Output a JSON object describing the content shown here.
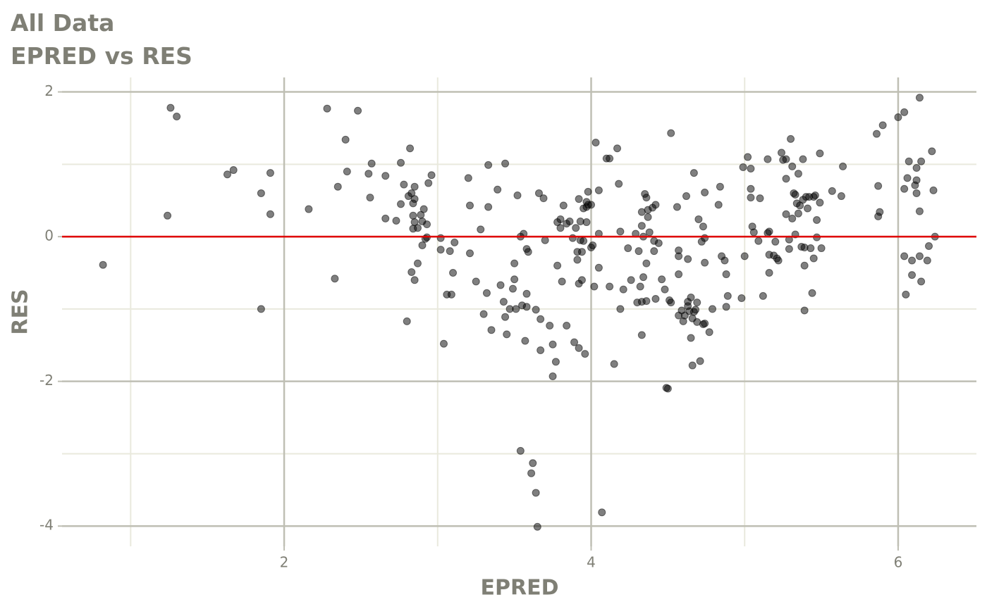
{
  "chart_data": {
    "type": "scatter",
    "title": "All Data",
    "subtitle": "EPRED vs RES",
    "x_label": "EPRED",
    "y_label": "RES",
    "xlim": [
      0.553,
      6.51
    ],
    "ylim": [
      -4.28,
      2.2
    ],
    "xticks": [
      2,
      4,
      6
    ],
    "yticks": [
      -4,
      -2,
      0,
      2
    ],
    "minor_xticks": [
      1,
      3,
      5
    ],
    "minor_yticks": [
      -3,
      -1,
      1
    ],
    "grid": true,
    "hline": 0,
    "hline_color": "#e00000",
    "color": "#000000",
    "opacity": 0.5,
    "x": [
      0.82,
      1.24,
      1.26,
      1.3,
      1.63,
      1.67,
      1.85,
      1.85,
      1.91,
      1.91,
      2.16,
      2.28,
      2.33,
      2.35,
      2.4,
      2.41,
      2.48,
      2.55,
      2.56,
      2.57,
      2.66,
      2.66,
      2.73,
      2.76,
      2.76,
      2.78,
      2.8,
      2.81,
      2.82,
      2.83,
      2.83,
      2.84,
      2.84,
      2.84,
      2.85,
      2.85,
      2.85,
      2.85,
      2.87,
      2.87,
      2.89,
      2.9,
      2.9,
      2.91,
      2.92,
      2.93,
      2.94,
      2.96,
      2.93,
      3.02,
      3.02,
      3.04,
      3.06,
      3.08,
      3.09,
      3.1,
      3.11,
      3.2,
      3.21,
      3.21,
      3.25,
      3.28,
      3.3,
      3.33,
      3.32,
      3.33,
      3.35,
      3.39,
      3.41,
      3.43,
      3.44,
      3.44,
      3.45,
      3.47,
      3.49,
      3.5,
      3.5,
      3.51,
      3.52,
      3.54,
      3.54,
      3.55,
      3.56,
      3.57,
      3.58,
      3.58,
      3.58,
      3.59,
      3.61,
      3.62,
      3.64,
      3.64,
      3.65,
      3.66,
      3.67,
      3.67,
      3.69,
      3.7,
      3.73,
      3.75,
      3.75,
      3.77,
      3.78,
      3.78,
      3.8,
      3.8,
      3.81,
      3.82,
      3.84,
      3.84,
      3.86,
      3.88,
      3.89,
      3.9,
      3.91,
      3.91,
      3.92,
      3.92,
      3.92,
      3.93,
      3.93,
      3.94,
      3.94,
      3.95,
      3.95,
      3.96,
      3.97,
      3.97,
      3.97,
      3.98,
      3.98,
      4.0,
      4.0,
      4.01,
      4.02,
      4.03,
      4.05,
      4.05,
      4.05,
      4.07,
      4.1,
      4.12,
      4.12,
      4.15,
      4.17,
      4.18,
      4.19,
      4.19,
      4.21,
      4.24,
      4.26,
      4.29,
      4.3,
      4.31,
      4.32,
      4.33,
      4.33,
      4.33,
      4.33,
      4.34,
      4.34,
      4.35,
      4.36,
      4.36,
      4.36,
      4.37,
      4.37,
      4.38,
      4.4,
      4.41,
      4.41,
      4.42,
      4.42,
      4.44,
      4.46,
      4.48,
      4.49,
      4.5,
      4.51,
      4.52,
      4.52,
      4.56,
      4.57,
      4.57,
      4.57,
      4.57,
      4.59,
      4.6,
      4.61,
      4.62,
      4.63,
      4.63,
      4.63,
      4.64,
      4.65,
      4.65,
      4.66,
      4.66,
      4.67,
      4.67,
      4.68,
      4.69,
      4.69,
      4.7,
      4.71,
      4.72,
      4.73,
      4.73,
      4.74,
      4.74,
      4.74,
      4.74,
      4.77,
      4.79,
      4.83,
      4.84,
      4.85,
      4.87,
      4.88,
      4.88,
      4.89,
      4.98,
      4.99,
      5.0,
      5.02,
      5.04,
      5.04,
      5.04,
      5.05,
      5.06,
      5.09,
      5.1,
      5.12,
      5.15,
      5.15,
      5.16,
      5.16,
      5.16,
      5.19,
      5.2,
      5.21,
      5.22,
      5.24,
      5.25,
      5.27,
      5.27,
      5.27,
      5.29,
      5.29,
      5.3,
      5.31,
      5.31,
      5.32,
      5.33,
      5.33,
      5.34,
      5.35,
      5.35,
      5.36,
      5.37,
      5.38,
      5.38,
      5.39,
      5.39,
      5.39,
      5.4,
      5.41,
      5.42,
      5.43,
      5.44,
      5.45,
      5.45,
      5.46,
      5.47,
      5.47,
      5.49,
      5.49,
      5.5,
      5.57,
      5.63,
      5.64,
      5.86,
      5.87,
      5.87,
      5.88,
      5.9,
      6.0,
      6.04,
      6.04,
      6.04,
      6.05,
      6.06,
      6.07,
      6.09,
      6.09,
      6.11,
      6.12,
      6.12,
      6.12,
      6.14,
      6.14,
      6.14,
      6.15,
      6.15,
      6.19,
      6.2,
      6.22,
      6.23,
      6.24
    ],
    "y": [
      -0.39,
      0.29,
      1.78,
      1.66,
      0.86,
      0.92,
      0.6,
      -1.0,
      0.88,
      0.31,
      0.38,
      1.77,
      -0.58,
      0.69,
      1.34,
      0.9,
      1.74,
      0.87,
      0.54,
      1.01,
      0.25,
      0.84,
      0.22,
      1.02,
      0.45,
      0.72,
      -1.17,
      0.56,
      1.22,
      0.6,
      -0.49,
      0.11,
      0.46,
      0.29,
      0.69,
      -0.6,
      0.52,
      0.2,
      -0.37,
      0.12,
      0.3,
      -0.12,
      0.21,
      0.38,
      -0.03,
      0.17,
      0.74,
      0.85,
      -0.01,
      -0.02,
      -0.18,
      -1.48,
      -0.8,
      -0.2,
      -0.8,
      -0.5,
      -0.08,
      0.81,
      0.43,
      -0.23,
      -0.62,
      0.1,
      -1.07,
      0.41,
      -0.78,
      0.99,
      -1.29,
      0.65,
      -0.67,
      -0.9,
      1.01,
      -1.11,
      -1.35,
      -1.0,
      -0.72,
      -0.37,
      -0.59,
      -1.0,
      0.57,
      -2.96,
      0.0,
      -0.95,
      0.04,
      -1.44,
      -0.97,
      -0.79,
      -0.17,
      -0.21,
      -3.27,
      -3.13,
      -3.54,
      -1.01,
      -4.01,
      0.6,
      -1.14,
      -1.57,
      0.53,
      -0.05,
      -1.23,
      -1.49,
      -1.93,
      -1.73,
      -0.4,
      0.2,
      0.12,
      0.24,
      -0.62,
      0.43,
      0.18,
      -1.23,
      0.21,
      -0.02,
      -1.46,
      0.12,
      -0.21,
      -0.32,
      -0.65,
      0.52,
      -1.54,
      -0.05,
      0.21,
      -0.6,
      -0.21,
      0.39,
      -0.06,
      -1.62,
      0.2,
      0.48,
      0.41,
      0.62,
      0.44,
      0.44,
      -0.15,
      -0.12,
      -0.69,
      1.3,
      0.64,
      -0.43,
      0.04,
      -3.81,
      1.08,
      1.08,
      -0.69,
      -1.76,
      1.22,
      0.73,
      -1.0,
      0.07,
      -0.73,
      -0.16,
      -0.6,
      0.04,
      -0.91,
      -0.2,
      -0.69,
      -1.36,
      -0.9,
      0.34,
      0.15,
      0.0,
      -0.56,
      0.59,
      -0.37,
      -0.89,
      0.54,
      0.27,
      0.37,
      0.06,
      0.4,
      -0.2,
      -0.06,
      0.44,
      -0.86,
      -0.09,
      -0.59,
      -0.73,
      -2.09,
      -2.1,
      -0.88,
      -0.91,
      1.43,
      0.41,
      -0.52,
      -0.27,
      -0.19,
      -1.09,
      -1.02,
      -1.17,
      -1.09,
      0.56,
      -0.96,
      -0.31,
      -0.9,
      -1.03,
      -0.84,
      -1.4,
      -1.78,
      -1.13,
      0.88,
      -1.04,
      -1.01,
      -0.91,
      -1.18,
      0.24,
      -1.72,
      -0.07,
      0.14,
      -1.21,
      0.61,
      -0.36,
      -0.02,
      -1.2,
      -1.32,
      -1.0,
      0.44,
      0.69,
      -0.27,
      -0.33,
      -0.52,
      -0.97,
      -0.82,
      -0.85,
      0.96,
      -0.27,
      1.1,
      0.94,
      0.66,
      0.54,
      0.14,
      0.06,
      -0.06,
      0.53,
      -0.82,
      0.05,
      1.07,
      -0.25,
      -0.5,
      0.07,
      -0.26,
      -0.07,
      -0.3,
      -0.33,
      1.16,
      1.06,
      0.31,
      1.07,
      0.8,
      -0.17,
      -0.04,
      1.35,
      0.97,
      0.25,
      0.6,
      0.03,
      0.58,
      0.46,
      0.32,
      0.87,
      0.43,
      -0.14,
      0.51,
      1.07,
      -0.15,
      -1.02,
      -0.4,
      0.55,
      0.39,
      0.55,
      -0.16,
      -0.78,
      -0.3,
      0.55,
      0.57,
      0.23,
      -0.01,
      0.47,
      1.15,
      -0.16,
      0.63,
      0.56,
      0.97,
      1.42,
      0.28,
      0.7,
      0.34,
      1.54,
      1.65,
      -0.27,
      0.66,
      1.72,
      -0.8,
      0.81,
      1.04,
      -0.33,
      -0.53,
      0.71,
      0.95,
      0.78,
      0.6,
      0.35,
      1.92,
      -0.27,
      1.04,
      -0.62,
      -0.33,
      -0.13,
      1.18,
      0.64,
      0.0
    ]
  }
}
